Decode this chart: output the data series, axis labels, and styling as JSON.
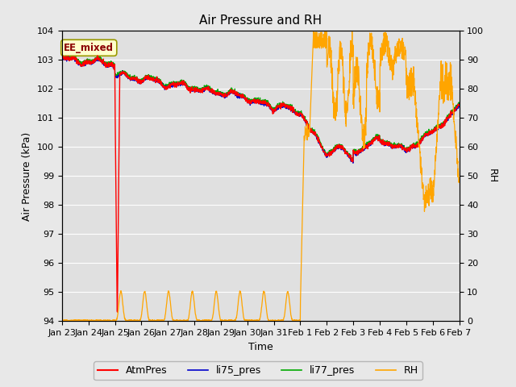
{
  "title": "Air Pressure and RH",
  "xlabel": "Time",
  "ylabel_left": "Air Pressure (kPa)",
  "ylabel_right": "RH",
  "ylim_left": [
    94.0,
    104.0
  ],
  "ylim_right": [
    0,
    100
  ],
  "yticks_left": [
    94.0,
    95.0,
    96.0,
    97.0,
    98.0,
    99.0,
    100.0,
    101.0,
    102.0,
    103.0,
    104.0
  ],
  "yticks_right": [
    0,
    10,
    20,
    30,
    40,
    50,
    60,
    70,
    80,
    90,
    100
  ],
  "figure_bg": "#e8e8e8",
  "plot_bg": "#e0e0e0",
  "grid_color": "#ffffff",
  "annotation_text": "EE_mixed",
  "annotation_color": "#8b0000",
  "annotation_bg": "#ffffcc",
  "annotation_edge": "#999900",
  "legend_items": [
    "AtmPres",
    "li75_pres",
    "li77_pres",
    "RH"
  ],
  "legend_colors": [
    "#ff0000",
    "#0000cc",
    "#00aa00",
    "#ffa500"
  ],
  "xtick_labels": [
    "Jan 23",
    "Jan 24",
    "Jan 25",
    "Jan 26",
    "Jan 27",
    "Jan 28",
    "Jan 29",
    "Jan 30",
    "Jan 31",
    "Feb 1",
    "Feb 2",
    "Feb 3",
    "Feb 4",
    "Feb 5",
    "Feb 6",
    "Feb 7"
  ],
  "num_points": 2000,
  "seed": 42
}
